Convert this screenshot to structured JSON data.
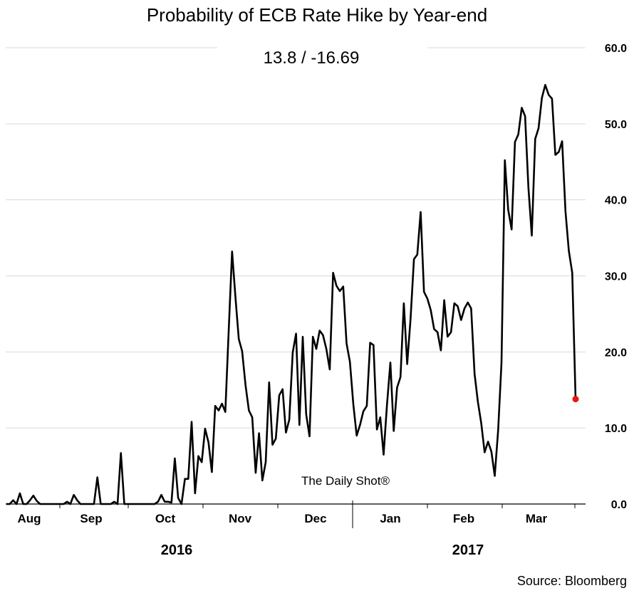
{
  "chart_data": {
    "type": "line",
    "title": "Probability of ECB Rate Hike by Year-end",
    "subtitle": "13.8  /  -16.69",
    "source": "Source: Bloomberg",
    "watermark": "The Daily Shot®",
    "ylim": [
      0,
      60
    ],
    "y_ticks": [
      "0.0",
      "10.0",
      "20.0",
      "30.0",
      "40.0",
      "50.0",
      "60.0"
    ],
    "y_axis_side": "right",
    "grid": true,
    "months": [
      "Aug",
      "Sep",
      "Oct",
      "Nov",
      "Dec",
      "Jan",
      "Feb",
      "Mar"
    ],
    "years": [
      "2016",
      "2017"
    ],
    "line_color": "#000000",
    "last_point_color": "#e8160c",
    "series": [
      {
        "x_index_start": 0,
        "values": [
          0,
          0,
          0.5,
          0,
          1.4,
          0,
          0,
          0.5,
          1.1,
          0.4,
          0,
          0,
          0,
          0,
          0,
          0,
          0,
          0,
          0.3,
          0,
          1.2,
          0.5,
          0,
          0,
          0,
          0,
          0,
          3.5,
          0,
          0,
          0,
          0,
          0.3,
          0,
          6.7,
          0,
          0,
          0,
          0,
          0,
          0,
          0,
          0,
          0,
          0,
          0.3,
          1.2,
          0.3,
          0.3,
          0.2,
          6.0,
          0.8,
          0,
          3.3,
          3.3,
          10.8,
          1.4,
          6.3,
          5.5,
          9.9,
          8.1,
          4.2,
          12.9,
          12.3,
          13.2,
          12.1,
          22.7,
          33.2,
          27.2,
          21.7,
          20.1,
          15.6,
          12.3,
          11.4,
          4.1,
          9.3,
          3.1,
          5.5,
          16.0,
          7.8,
          8.6,
          14.3,
          15.1,
          9.4,
          11.1,
          19.9,
          22.4,
          10.4,
          22.0,
          11.8,
          8.9,
          22.0,
          20.4,
          22.8,
          22.2,
          20.4,
          17.7,
          30.4,
          28.7,
          28.0,
          28.6,
          21.1,
          18.7,
          13.1,
          9.0,
          10.4,
          12.2,
          12.9,
          21.2,
          20.9,
          9.8,
          11.4,
          6.5,
          13.0,
          18.6,
          9.6,
          15.3,
          16.7,
          26.4,
          18.4,
          24.3,
          32.2,
          32.8,
          38.4,
          27.9,
          27.0,
          25.5,
          23.0,
          22.6,
          20.2,
          26.8,
          22.0,
          22.6,
          26.4,
          26.0,
          24.2,
          25.7,
          26.5,
          25.7,
          17.1,
          13.4,
          10.6,
          6.8,
          8.2,
          6.9,
          3.7,
          9.7,
          18.6,
          45.2,
          38.7,
          36.1,
          47.6,
          48.6,
          52.1,
          51.0,
          41.6,
          35.3,
          48.0,
          49.4,
          53.4,
          55.1,
          53.8,
          53.3,
          45.9,
          46.3,
          47.7,
          38.5,
          33.3,
          30.4,
          13.8
        ]
      }
    ]
  }
}
